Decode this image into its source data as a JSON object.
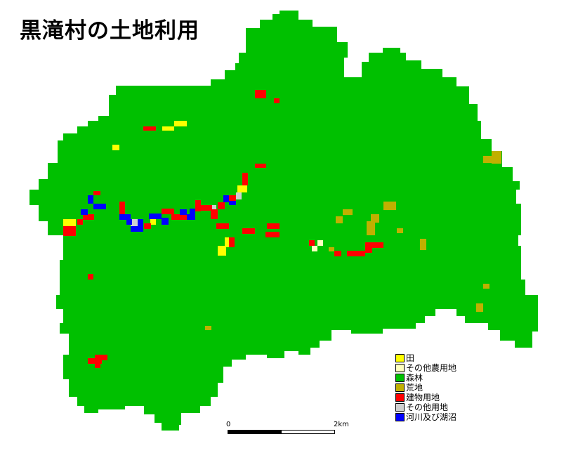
{
  "title": "黒滝村の土地利用",
  "legend": [
    {
      "label": "田",
      "color": "#ffff00"
    },
    {
      "label": "その他農用地",
      "color": "#ffffc0"
    },
    {
      "label": "森林",
      "color": "#00c000"
    },
    {
      "label": "荒地",
      "color": "#c0b000"
    },
    {
      "label": "建物用地",
      "color": "#ff0000"
    },
    {
      "label": "その他用地",
      "color": "#d0d0d0"
    },
    {
      "label": "河川及び湖沼",
      "color": "#0000ff"
    }
  ],
  "scale": {
    "start_label": "0",
    "end_label": "2km"
  },
  "colors": {
    "forest": "#00c000",
    "paddy": "#ffff00",
    "other_farm": "#ffffc0",
    "wasteland": "#c0b000",
    "building": "#ff0000",
    "other_use": "#d0d0d0",
    "water": "#0000ff"
  }
}
